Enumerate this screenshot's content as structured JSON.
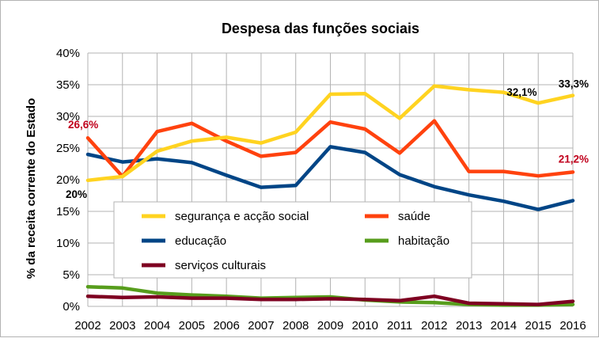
{
  "chart_data": {
    "type": "line",
    "title": "Despesa das funções sociais",
    "xlabel": "",
    "ylabel": "% da receita corrente do Estado",
    "categories": [
      "2002",
      "2003",
      "2004",
      "2005",
      "2006",
      "2007",
      "2008",
      "2009",
      "2010",
      "2011",
      "2012",
      "2013",
      "2014",
      "2015",
      "2016"
    ],
    "ylim": [
      0,
      40
    ],
    "yticks": [
      "0%",
      "5%",
      "10%",
      "15%",
      "20%",
      "25%",
      "30%",
      "35%",
      "40%"
    ],
    "grid": true,
    "legend_position": "center-left",
    "series": [
      {
        "name": "segurança e acção social",
        "color": "#ffd320",
        "values": [
          19.9,
          20.5,
          24.5,
          26.1,
          26.7,
          25.8,
          27.5,
          33.5,
          33.6,
          29.7,
          34.8,
          34.2,
          33.8,
          32.1,
          33.3
        ]
      },
      {
        "name": "saúde",
        "color": "#ff420e",
        "values": [
          26.6,
          20.5,
          27.6,
          28.9,
          26.1,
          23.7,
          24.3,
          29.1,
          28.0,
          24.2,
          29.3,
          21.3,
          21.3,
          20.6,
          21.2
        ]
      },
      {
        "name": "educação",
        "color": "#004586",
        "values": [
          24.0,
          22.8,
          23.3,
          22.7,
          20.7,
          18.8,
          19.1,
          25.2,
          24.3,
          20.8,
          18.9,
          17.6,
          16.6,
          15.3,
          16.7
        ]
      },
      {
        "name": "habitação",
        "color": "#579d1c",
        "values": [
          3.1,
          2.9,
          2.1,
          1.8,
          1.6,
          1.3,
          1.4,
          1.5,
          1.0,
          0.7,
          0.6,
          0.3,
          0.2,
          0.2,
          0.3
        ]
      },
      {
        "name": "serviços culturais",
        "color": "#7e0021",
        "values": [
          1.6,
          1.4,
          1.5,
          1.3,
          1.3,
          1.1,
          1.1,
          1.2,
          1.1,
          0.9,
          1.6,
          0.5,
          0.4,
          0.3,
          0.8
        ]
      }
    ],
    "annotations": [
      {
        "text": "26,6%",
        "series": 1,
        "index": 0,
        "color": "#c0001c"
      },
      {
        "text": "20%",
        "series": 0,
        "index": 0,
        "color": "#000000"
      },
      {
        "text": "32,1%",
        "series": 0,
        "index": 13,
        "color": "#000000"
      },
      {
        "text": "33,3%",
        "series": 0,
        "index": 14,
        "color": "#000000"
      },
      {
        "text": "21,2%",
        "series": 1,
        "index": 14,
        "color": "#c0001c"
      }
    ]
  }
}
